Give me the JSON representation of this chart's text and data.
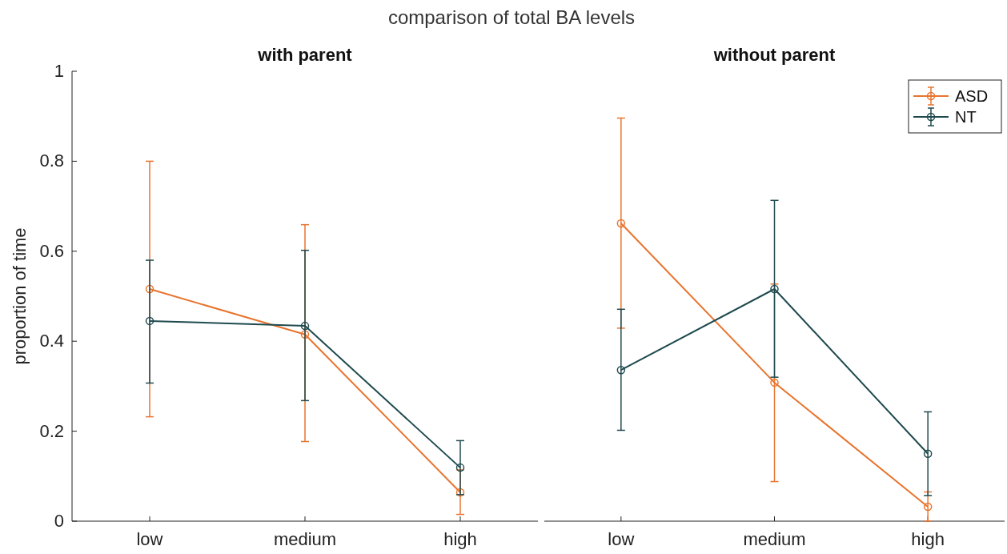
{
  "chart_data": [
    {
      "type": "line",
      "title": "with parent",
      "ylabel": "proportion of time",
      "annotations": [
        "comparison of total BA levels"
      ],
      "categories": [
        "low",
        "medium",
        "high"
      ],
      "ylim": [
        0,
        1
      ],
      "yticks": [
        0,
        {
          "value": 0.2,
          "label": "0.2"
        },
        {
          "value": 0.4,
          "label": "0.4"
        },
        {
          "value": 0.6,
          "label": "0.6"
        },
        {
          "value": 0.8,
          "label": "0.8"
        },
        1
      ],
      "marker": "circle",
      "grid": false,
      "legend": false,
      "series": [
        {
          "color": "#e8742e",
          "values": [
            0.516,
            0.415,
            0.064
          ],
          "errors": [
            [
              0.232,
              0.8
            ],
            [
              0.177,
              0.659
            ],
            [
              0.015,
              0.114
            ]
          ]
        },
        {
          "color": "#1f4a4f",
          "values": [
            0.445,
            0.434,
            0.119
          ],
          "errors": [
            [
              0.307,
              0.58
            ],
            [
              0.268,
              0.602
            ],
            [
              0.059,
              0.179
            ]
          ]
        }
      ]
    },
    {
      "type": "line",
      "title": "without parent",
      "categories": [
        "low",
        "medium",
        "high"
      ],
      "ylim": [
        0,
        1
      ],
      "tick_labels": "x",
      "marker": "circle",
      "grid": false,
      "legend": "top right",
      "series": [
        {
          "name": "ASD",
          "color": "#e8742e",
          "values": [
            0.662,
            0.308,
            0.032
          ],
          "errors": [
            [
              0.429,
              0.896
            ],
            [
              0.088,
              0.527
            ],
            [
              0,
              0.065
            ]
          ]
        },
        {
          "name": "NT",
          "color": "#1f4a4f",
          "values": [
            0.336,
            0.516,
            0.15
          ],
          "errors": [
            [
              0.202,
              0.471
            ],
            [
              0.32,
              0.713
            ],
            [
              0.057,
              0.243
            ]
          ]
        }
      ]
    }
  ]
}
